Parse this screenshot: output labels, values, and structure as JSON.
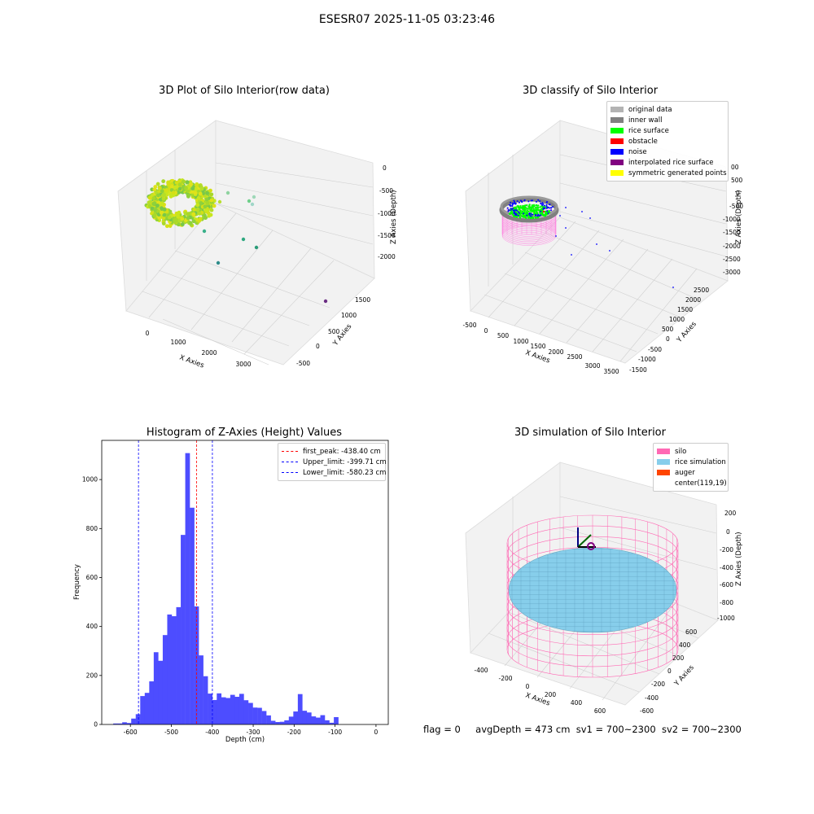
{
  "suptitle": "ESESR07 2025-11-05 03:23:46",
  "panels": {
    "raw": {
      "title": "3D Plot of Silo Interior(row data)",
      "xlabel": "X Axies",
      "ylabel": "Y Axies",
      "zlabel": "Z Axies (Depth)",
      "xticks": [
        "0",
        "1000",
        "2000",
        "3000"
      ],
      "yticks": [
        "-500",
        "0",
        "500",
        "1000",
        "1500"
      ],
      "zticks": [
        "0",
        "-500",
        "-1000",
        "-1500",
        "-2000"
      ]
    },
    "classify": {
      "title": "3D classify of Silo Interior",
      "xlabel": "X Axies",
      "ylabel": "Y Axies",
      "zlabel": "Z Axies (Depth)",
      "xticks": [
        "-500",
        "0",
        "500",
        "1000",
        "1500",
        "2000",
        "2500",
        "3000",
        "3500"
      ],
      "yticks": [
        "-1500",
        "-1000",
        "-500",
        "0",
        "500",
        "1000",
        "1500",
        "2000",
        "2500"
      ],
      "zticks": [
        "500",
        "0",
        "-500",
        "-1000",
        "-1500",
        "-2000",
        "-2500",
        "-3000"
      ],
      "ztick_partial": "00",
      "legend": [
        {
          "label": "original data",
          "color": "#b3b3b3"
        },
        {
          "label": "inner wall",
          "color": "#808080"
        },
        {
          "label": "rice surface",
          "color": "#00ff00"
        },
        {
          "label": "obstacle",
          "color": "#ff0000"
        },
        {
          "label": "noise",
          "color": "#0000ff"
        },
        {
          "label": "interpolated rice surface",
          "color": "#800080"
        },
        {
          "label": "symmetric generated points",
          "color": "#ffff00"
        }
      ]
    },
    "simulation": {
      "title": "3D simulation of Silo Interior",
      "xlabel": "X Axies",
      "ylabel": "Y Axies",
      "zlabel": "Z Axies (Depth)",
      "xticks": [
        "-400",
        "-200",
        "0",
        "200",
        "400",
        "600"
      ],
      "yticks": [
        "-600",
        "-400",
        "-200",
        "0",
        "200",
        "400",
        "600"
      ],
      "zticks": [
        "200",
        "0",
        "-200",
        "-400",
        "-600",
        "-800",
        "-1000"
      ],
      "legend": [
        {
          "label": "silo",
          "color": "#ff69b4"
        },
        {
          "label": "rice simulation",
          "color": "#87ceeb"
        },
        {
          "label": "auger",
          "color": "#ff4500"
        },
        {
          "label": "center(119,19)",
          "color": ""
        }
      ]
    }
  },
  "chart_data": {
    "type": "bar",
    "title": "Histogram of Z-Axies (Height) Values",
    "xlabel": "Depth (cm)",
    "ylabel": "Frequency",
    "xlim": [
      -670,
      30
    ],
    "ylim": [
      0,
      1160
    ],
    "xticks": [
      -600,
      -500,
      -400,
      -300,
      -200,
      -100,
      0
    ],
    "yticks": [
      0,
      200,
      400,
      600,
      800,
      1000
    ],
    "bin_width": 11,
    "bin_starts": [
      -642,
      -631,
      -620,
      -609,
      -598,
      -587,
      -576,
      -565,
      -554,
      -543,
      -532,
      -521,
      -510,
      -499,
      -488,
      -477,
      -466,
      -455,
      -444,
      -433,
      -422,
      -411,
      -400,
      -389,
      -378,
      -367,
      -356,
      -345,
      -334,
      -323,
      -312,
      -301,
      -290,
      -279,
      -268,
      -257,
      -246,
      -235,
      -224,
      -213,
      -202,
      -191,
      -180,
      -169,
      -158,
      -147,
      -136,
      -125,
      -114,
      -103,
      -92,
      -81,
      -70,
      -59,
      -48,
      -37,
      -26,
      -15,
      -4
    ],
    "values": [
      4,
      4,
      9,
      6,
      24,
      42,
      116,
      129,
      176,
      295,
      260,
      365,
      449,
      442,
      479,
      774,
      1108,
      885,
      482,
      282,
      197,
      126,
      100,
      127,
      111,
      108,
      121,
      113,
      125,
      99,
      88,
      69,
      68,
      55,
      37,
      15,
      10,
      11,
      17,
      32,
      53,
      124,
      56,
      49,
      33,
      28,
      38,
      17,
      7,
      30,
      0,
      0,
      0,
      0,
      0,
      0,
      0,
      0,
      0
    ],
    "vlines": [
      {
        "label": "first_peak: -438.40 cm",
        "x": -438.4,
        "color": "#ff0000"
      },
      {
        "label": "Upper_limit: -399.71 cm",
        "x": -399.71,
        "color": "#0000ff"
      },
      {
        "label": "Lower_limit: -580.23 cm",
        "x": -580.23,
        "color": "#0000ff"
      }
    ],
    "bar_color": "#4d4dff",
    "legend_position": "upper right"
  },
  "status": {
    "flag": "flag = 0",
    "avg": "avgDepth = 473 cm",
    "sv1": "sv1 = 700~2300",
    "sv2": "sv2 = 700~2300"
  }
}
